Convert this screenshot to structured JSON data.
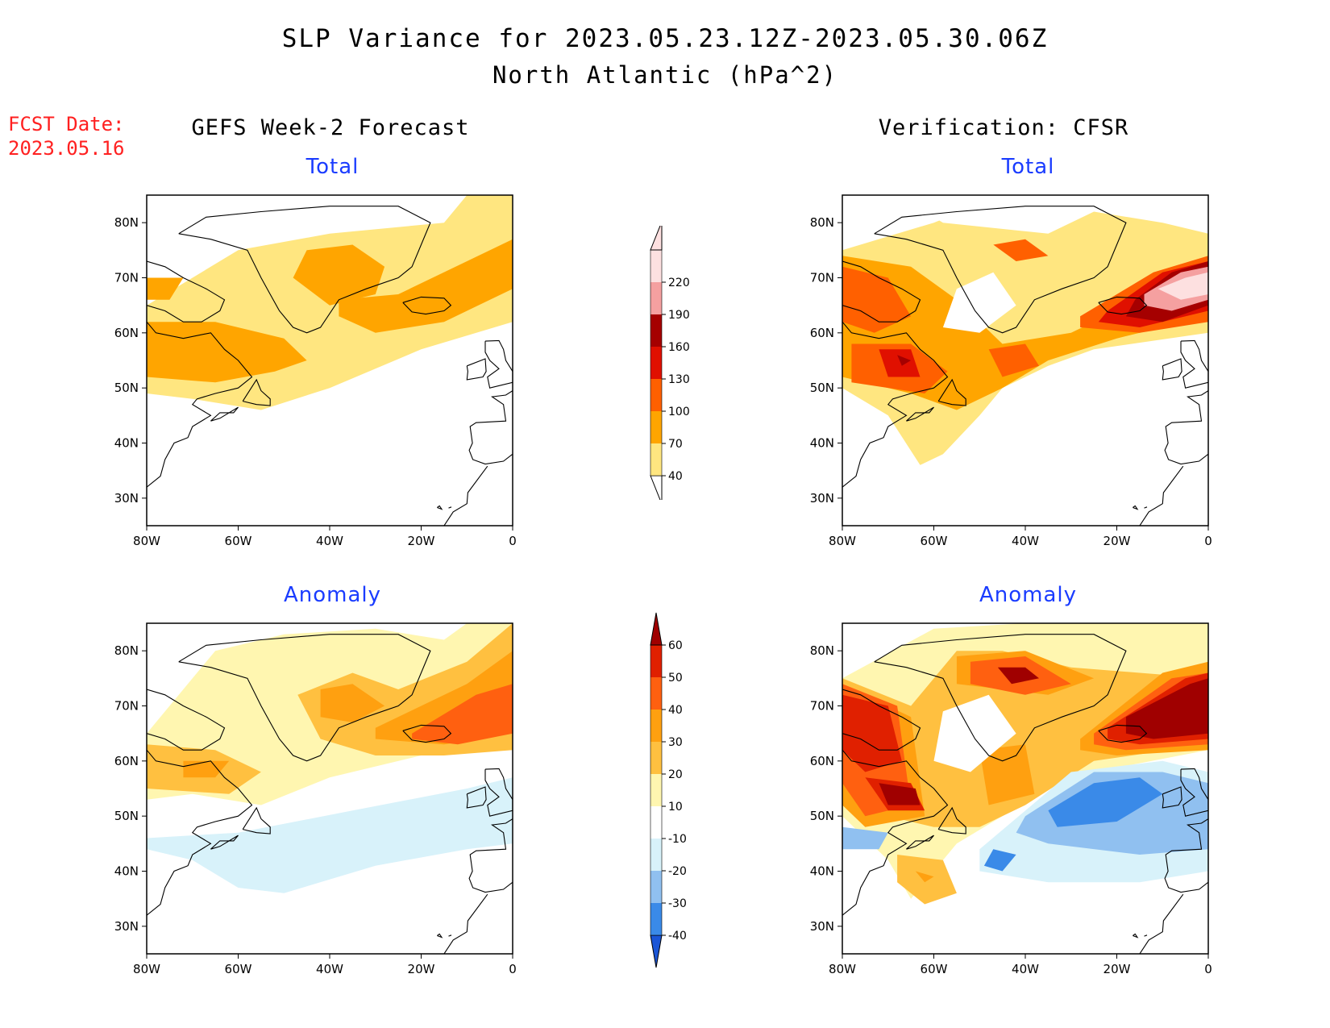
{
  "title": "SLP Variance for 2023.05.23.12Z-2023.05.30.06Z",
  "subtitle": "North Atlantic (hPa^2)",
  "fcst_label": "FCST Date:",
  "fcst_date": "2023.05.16",
  "left_column_title": "GEFS Week-2 Forecast",
  "right_column_title": "Verification: CFSR",
  "colors": {
    "total_scale": [
      "#ffe680",
      "#ffa500",
      "#ff6000",
      "#e01000",
      "#a50000",
      "#f5a0a0",
      "#fde0e0"
    ],
    "anomaly_scale": [
      "#1a55d6",
      "#3a8ae8",
      "#90c0f0",
      "#d8f2fa",
      "#ffffff",
      "#fff6b0",
      "#ffc040",
      "#ffa010",
      "#ff6010",
      "#e02000",
      "#a00000"
    ],
    "coast": "#000000"
  },
  "chart_data": [
    {
      "type": "heatmap",
      "name": "forecast_total",
      "title": "Total",
      "x_ticks": [
        "80W",
        "60W",
        "40W",
        "20W",
        "0"
      ],
      "y_ticks": [
        "80N",
        "70N",
        "60N",
        "50N",
        "40N",
        "30N"
      ],
      "xlim": [
        -80,
        0
      ],
      "ylim": [
        25,
        85
      ],
      "regions": [
        {
          "level": 40,
          "lon": [
            -80,
            -60,
            -40,
            -15,
            -10,
            0,
            0,
            -20,
            -40,
            -55,
            -70,
            -80
          ],
          "lat": [
            65,
            75,
            78,
            80,
            85,
            85,
            62,
            57,
            50,
            46,
            48,
            49
          ]
        },
        {
          "level": 70,
          "lon": [
            -80,
            -65,
            -50,
            -45,
            -52,
            -65,
            -80
          ],
          "lat": [
            62,
            62,
            59,
            55,
            53,
            51,
            52
          ]
        },
        {
          "level": 70,
          "lon": [
            -45,
            -35,
            -28,
            -30,
            -40,
            -48
          ],
          "lat": [
            75,
            76,
            72,
            67,
            65,
            70
          ]
        },
        {
          "level": 70,
          "lon": [
            -38,
            -25,
            -10,
            0,
            0,
            -15,
            -30,
            -38
          ],
          "lat": [
            66,
            67,
            73,
            77,
            68,
            62,
            60,
            63
          ]
        },
        {
          "level": 70,
          "lon": [
            -80,
            -72,
            -75,
            -80
          ],
          "lat": [
            70,
            70,
            66,
            66
          ]
        }
      ]
    },
    {
      "type": "heatmap",
      "name": "verification_total",
      "title": "Total",
      "x_ticks": [
        "80W",
        "60W",
        "40W",
        "20W",
        "0"
      ],
      "y_ticks": [
        "80N",
        "70N",
        "60N",
        "50N",
        "40N",
        "30N"
      ],
      "xlim": [
        -80,
        0
      ],
      "ylim": [
        25,
        85
      ],
      "regions": [
        {
          "level": 40,
          "lon": [
            -80,
            -60,
            -45,
            -30,
            -10,
            0,
            0,
            -25,
            -35,
            -45,
            -50,
            -58,
            -63,
            -70,
            -80
          ],
          "lat": [
            75,
            80,
            85,
            85,
            83,
            85,
            60,
            57,
            54,
            50,
            45,
            38,
            36,
            45,
            50
          ]
        },
        {
          "level": 70,
          "lon": [
            -80,
            -65,
            -55,
            -45,
            -30,
            -15,
            0,
            0,
            -20,
            -35,
            -45,
            -55,
            -65,
            -80
          ],
          "lat": [
            74,
            72,
            66,
            58,
            60,
            66,
            72,
            63,
            59,
            55,
            50,
            46,
            49,
            52
          ]
        },
        {
          "level": 100,
          "lon": [
            -80,
            -70,
            -65,
            -73,
            -80
          ],
          "lat": [
            72,
            70,
            63,
            60,
            62
          ]
        },
        {
          "level": 100,
          "lon": [
            -78,
            -65,
            -57,
            -62,
            -78
          ],
          "lat": [
            58,
            58,
            53,
            49,
            51
          ]
        },
        {
          "level": 100,
          "lon": [
            -48,
            -40,
            -37,
            -45
          ],
          "lat": [
            57,
            58,
            54,
            52
          ]
        },
        {
          "level": 100,
          "lon": [
            -47,
            -40,
            -35,
            -42
          ],
          "lat": [
            76,
            77,
            74,
            73
          ]
        },
        {
          "level": 100,
          "lon": [
            -28,
            -12,
            0,
            0,
            -15,
            -28
          ],
          "lat": [
            63,
            71,
            74,
            62,
            60,
            61
          ]
        },
        {
          "level": 130,
          "lon": [
            -72,
            -65,
            -63,
            -70
          ],
          "lat": [
            57,
            57,
            52,
            52
          ]
        },
        {
          "level": 130,
          "lon": [
            -22,
            -10,
            0,
            0,
            -15,
            -24
          ],
          "lat": [
            64,
            71,
            73,
            64,
            61,
            62
          ]
        },
        {
          "level": 160,
          "lon": [
            -68,
            -65,
            -67
          ],
          "lat": [
            56,
            55,
            54
          ]
        },
        {
          "level": 160,
          "lon": [
            -16,
            -8,
            0,
            0,
            -10,
            -18
          ],
          "lat": [
            66,
            71,
            73,
            65,
            62,
            63
          ]
        },
        {
          "level": 190,
          "lon": [
            -14,
            -6,
            0,
            0,
            -8,
            -14
          ],
          "lat": [
            67,
            71,
            72,
            66,
            64,
            65
          ]
        },
        {
          "level": 220,
          "lon": [
            -11,
            -5,
            0,
            0,
            -6
          ],
          "lat": [
            68,
            70,
            71,
            67,
            66
          ]
        },
        {
          "level": 0,
          "lon": [
            -68,
            -58,
            -35,
            -25,
            -10,
            0,
            0,
            -25,
            -30,
            -40,
            -45,
            -50,
            -60
          ],
          "lat": [
            85,
            80,
            78,
            82,
            80,
            78,
            85,
            85,
            85,
            85,
            85,
            85,
            85
          ]
        },
        {
          "level": 0,
          "lon": [
            -55,
            -47,
            -42,
            -50,
            -58
          ],
          "lat": [
            68,
            71,
            65,
            60,
            61
          ]
        }
      ]
    },
    {
      "type": "heatmap",
      "name": "forecast_anomaly",
      "title": "Anomaly",
      "x_ticks": [
        "80W",
        "60W",
        "40W",
        "20W",
        "0"
      ],
      "y_ticks": [
        "80N",
        "70N",
        "60N",
        "50N",
        "40N",
        "30N"
      ],
      "xlim": [
        -80,
        0
      ],
      "ylim": [
        25,
        85
      ],
      "regions": [
        {
          "level": 10,
          "lon": [
            -80,
            -65,
            -50,
            -30,
            -15,
            -10,
            0,
            0,
            -20,
            -40,
            -55,
            -70,
            -80
          ],
          "lat": [
            65,
            80,
            83,
            84,
            82,
            85,
            85,
            63,
            61,
            57,
            52,
            54,
            53
          ]
        },
        {
          "level": 20,
          "lon": [
            -80,
            -65,
            -55,
            -62,
            -80
          ],
          "lat": [
            63,
            62,
            58,
            54,
            55
          ]
        },
        {
          "level": 20,
          "lon": [
            -47,
            -35,
            -25,
            -10,
            0,
            0,
            -15,
            -30,
            -42
          ],
          "lat": [
            72,
            76,
            73,
            78,
            85,
            62,
            61,
            61,
            64
          ]
        },
        {
          "level": 30,
          "lon": [
            -72,
            -62,
            -65,
            -72
          ],
          "lat": [
            60,
            60,
            57,
            57
          ]
        },
        {
          "level": 30,
          "lon": [
            -42,
            -35,
            -28,
            -35,
            -42
          ],
          "lat": [
            73,
            74,
            70,
            67,
            68
          ]
        },
        {
          "level": 30,
          "lon": [
            -30,
            -10,
            0,
            0,
            -15,
            -30
          ],
          "lat": [
            66,
            74,
            80,
            65,
            63,
            64
          ]
        },
        {
          "level": 40,
          "lon": [
            -22,
            -8,
            0,
            0,
            -12,
            -22
          ],
          "lat": [
            65,
            72,
            74,
            65,
            63,
            64
          ]
        },
        {
          "level": -10,
          "lon": [
            -80,
            -60,
            -35,
            -10,
            0,
            0,
            -10,
            -30,
            -50,
            -60,
            -70,
            -80
          ],
          "lat": [
            46,
            47,
            51,
            55,
            57,
            45,
            44,
            41,
            36,
            37,
            42,
            44
          ]
        }
      ]
    },
    {
      "type": "heatmap",
      "name": "verification_anomaly",
      "title": "Anomaly",
      "x_ticks": [
        "80W",
        "60W",
        "40W",
        "20W",
        "0"
      ],
      "y_ticks": [
        "80N",
        "70N",
        "60N",
        "50N",
        "40N",
        "30N"
      ],
      "xlim": [
        -80,
        0
      ],
      "ylim": [
        25,
        85
      ],
      "regions": [
        {
          "level": 10,
          "lon": [
            -80,
            -60,
            -40,
            -25,
            -10,
            0,
            0,
            -25,
            -35,
            -45,
            -55,
            -60,
            -65,
            -70,
            -80
          ],
          "lat": [
            75,
            84,
            85,
            85,
            85,
            85,
            62,
            58,
            55,
            50,
            45,
            40,
            35,
            42,
            50
          ]
        },
        {
          "level": 20,
          "lon": [
            -80,
            -65,
            -55,
            -45,
            -30,
            -15,
            0,
            0,
            -25,
            -40,
            -50,
            -60,
            -70,
            -80
          ],
          "lat": [
            75,
            70,
            80,
            80,
            77,
            76,
            75,
            63,
            60,
            52,
            48,
            48,
            50,
            52
          ]
        },
        {
          "level": 30,
          "lon": [
            -80,
            -65,
            -62,
            -75,
            -80
          ],
          "lat": [
            74,
            68,
            50,
            48,
            52
          ]
        },
        {
          "level": 30,
          "lon": [
            -55,
            -40,
            -25,
            -35,
            -55
          ],
          "lat": [
            79,
            80,
            75,
            72,
            74
          ]
        },
        {
          "level": 30,
          "lon": [
            -50,
            -40,
            -38,
            -48
          ],
          "lat": [
            62,
            63,
            54,
            52
          ]
        },
        {
          "level": 30,
          "lon": [
            -28,
            -10,
            0,
            0,
            -20,
            -28
          ],
          "lat": [
            64,
            76,
            78,
            62,
            61,
            62
          ]
        },
        {
          "level": 40,
          "lon": [
            -80,
            -68,
            -65,
            -75,
            -80
          ],
          "lat": [
            74,
            70,
            52,
            50,
            56
          ]
        },
        {
          "level": 40,
          "lon": [
            -52,
            -40,
            -30,
            -40,
            -52
          ],
          "lat": [
            78,
            79,
            74,
            72,
            74
          ]
        },
        {
          "level": 40,
          "lon": [
            -25,
            -8,
            0,
            0,
            -18,
            -25
          ],
          "lat": [
            65,
            75,
            76,
            63,
            62,
            63
          ]
        },
        {
          "level": 50,
          "lon": [
            -80,
            -70,
            -67,
            -75,
            -80
          ],
          "lat": [
            72,
            70,
            60,
            58,
            62
          ]
        },
        {
          "level": 50,
          "lon": [
            -75,
            -65,
            -62,
            -70
          ],
          "lat": [
            57,
            56,
            51,
            51
          ]
        },
        {
          "level": 50,
          "lon": [
            -22,
            -5,
            0,
            0,
            -15,
            -22
          ],
          "lat": [
            66,
            75,
            76,
            64,
            63,
            64
          ]
        },
        {
          "level": 60,
          "lon": [
            -72,
            -64,
            -63,
            -70
          ],
          "lat": [
            56,
            55,
            52,
            52
          ]
        },
        {
          "level": 60,
          "lon": [
            -18,
            -4,
            0,
            0,
            -12,
            -18
          ],
          "lat": [
            68,
            74,
            75,
            65,
            64,
            65
          ]
        },
        {
          "level": 60,
          "lon": [
            -46,
            -40,
            -37,
            -43
          ],
          "lat": [
            77,
            77,
            75,
            74
          ]
        },
        {
          "level": 0,
          "lon": [
            -58,
            -48,
            -42,
            -52,
            -60
          ],
          "lat": [
            69,
            72,
            65,
            58,
            60
          ]
        },
        {
          "level": 20,
          "lon": [
            -68,
            -58,
            -55,
            -62,
            -68
          ],
          "lat": [
            43,
            42,
            36,
            34,
            38
          ]
        },
        {
          "level": 30,
          "lon": [
            -64,
            -60,
            -62
          ],
          "lat": [
            40,
            39,
            38
          ]
        },
        {
          "level": -10,
          "lon": [
            -50,
            -30,
            -10,
            0,
            0,
            -15,
            -35,
            -50
          ],
          "lat": [
            44,
            58,
            60,
            58,
            40,
            38,
            38,
            40
          ]
        },
        {
          "level": -20,
          "lon": [
            -40,
            -25,
            -10,
            0,
            0,
            -15,
            -35,
            -42
          ],
          "lat": [
            50,
            58,
            58,
            56,
            44,
            43,
            45,
            47
          ]
        },
        {
          "level": -30,
          "lon": [
            -35,
            -25,
            -15,
            -10,
            -20,
            -33
          ],
          "lat": [
            51,
            56,
            57,
            54,
            49,
            48
          ]
        },
        {
          "level": -30,
          "lon": [
            -47,
            -42,
            -45,
            -49
          ],
          "lat": [
            44,
            43,
            40,
            41
          ]
        },
        {
          "level": -20,
          "lon": [
            -80,
            -70,
            -72,
            -80
          ],
          "lat": [
            48,
            47,
            44,
            44
          ]
        }
      ]
    }
  ],
  "total_colorbar": {
    "levels": [
      "40",
      "70",
      "100",
      "130",
      "160",
      "190",
      "220"
    ]
  },
  "anomaly_colorbar": {
    "levels": [
      "-40",
      "-30",
      "-20",
      "-10",
      "10",
      "20",
      "30",
      "40",
      "50",
      "60"
    ]
  }
}
